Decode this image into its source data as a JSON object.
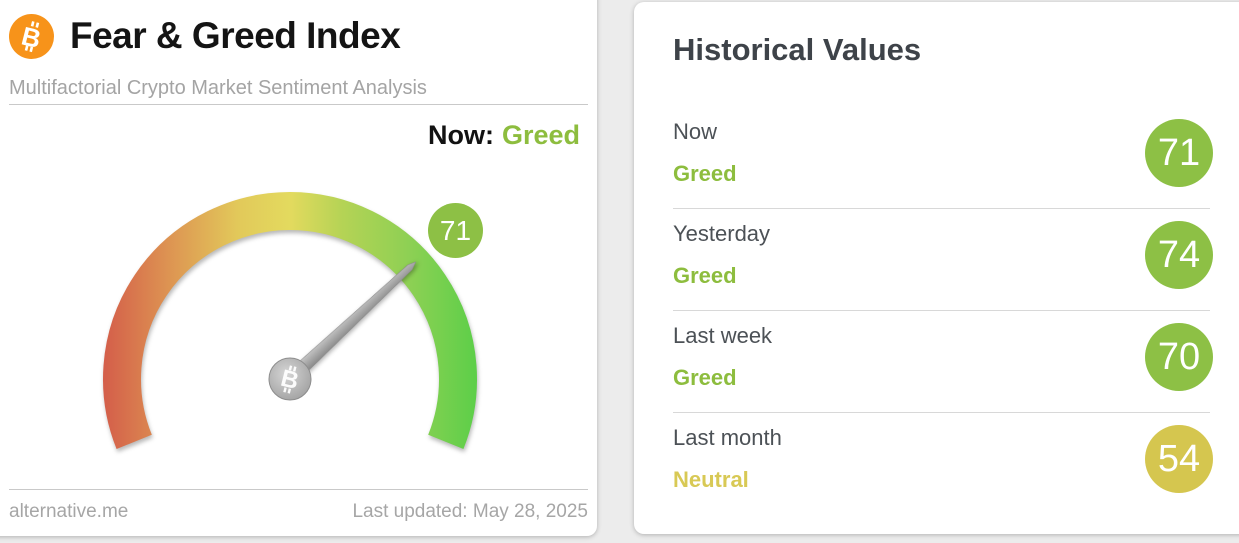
{
  "colors": {
    "page_bg": "#ececec",
    "card_bg": "#ffffff",
    "accent_green": "#8dbd3e",
    "badge_green": "#8dc045",
    "accent_yellow": "#d8c955",
    "badge_yellow": "#d5c64f",
    "bitcoin_orange": "#f7931a",
    "gauge_gradient": [
      "#d45f4a",
      "#dd9352",
      "#e2c95a",
      "#e3da5e",
      "#b5d355",
      "#8ed054",
      "#5ecf49"
    ]
  },
  "gauge_card": {
    "title": "Fear & Greed Index",
    "subtitle": "Multifactorial Crypto Market Sentiment Analysis",
    "now_label": "Now:",
    "now_classification": "Greed",
    "gauge_value_badge": "71",
    "footer_site": "alternative.me",
    "footer_updated": "Last updated: May 28, 2025"
  },
  "historical_card": {
    "title": "Historical Values",
    "rows": [
      {
        "label": "Now",
        "classification": "Greed",
        "value": "71",
        "badge_color": "#8dc045",
        "text_color": "#8dbd3e"
      },
      {
        "label": "Yesterday",
        "classification": "Greed",
        "value": "74",
        "badge_color": "#8dc045",
        "text_color": "#8dbd3e"
      },
      {
        "label": "Last week",
        "classification": "Greed",
        "value": "70",
        "badge_color": "#8dc045",
        "text_color": "#8dbd3e"
      },
      {
        "label": "Last month",
        "classification": "Neutral",
        "value": "54",
        "badge_color": "#d5c64f",
        "text_color": "#d8c955"
      }
    ]
  },
  "chart_data": {
    "type": "gauge",
    "title": "Fear & Greed Index",
    "value": 71,
    "min": 0,
    "max": 100,
    "classification": "Greed",
    "start_angle_deg": 202,
    "end_angle_deg": -22,
    "scale_note": "red (0, Extreme Fear) through yellow to green (100, Extreme Greed)",
    "historical": [
      {
        "label": "Now",
        "classification": "Greed",
        "value": 71
      },
      {
        "label": "Yesterday",
        "classification": "Greed",
        "value": 74
      },
      {
        "label": "Last week",
        "classification": "Greed",
        "value": 70
      },
      {
        "label": "Last month",
        "classification": "Neutral",
        "value": 54
      }
    ]
  }
}
